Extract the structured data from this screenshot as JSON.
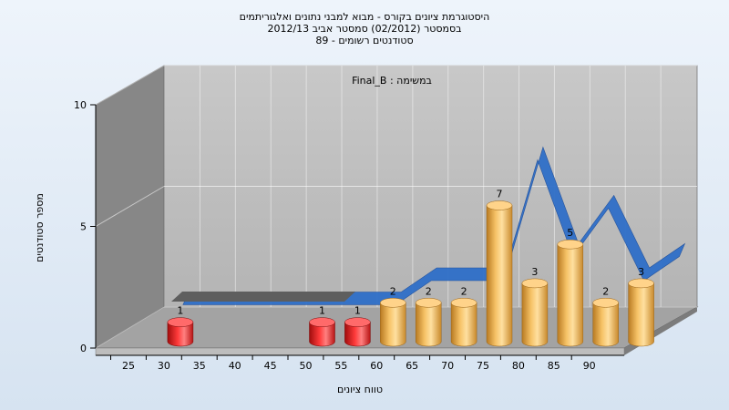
{
  "chart_data": {
    "type": "bar",
    "title": "היסטוגרמת ציונים בקורס - מבוא למבני נתונים ואלגוריתמים",
    "subtitle_1": "בסמסטר  (02/2012)  סמסטר אביב 2012/13",
    "subtitle_2": "סטודנטים רשומים - 89",
    "annotation": "במשימה : Final_B",
    "xlabel": "טווח ציונים",
    "ylabel": "מספר סטודנטים",
    "ylim": [
      0,
      10
    ],
    "y_ticks": [
      "0",
      "5",
      "10"
    ],
    "x_ticks": [
      "25",
      "30",
      "35",
      "40",
      "45",
      "50",
      "55",
      "60",
      "65",
      "70",
      "75",
      "80",
      "85",
      "90"
    ],
    "bars": [
      {
        "x": 25,
        "value": 1,
        "label": "1",
        "color": "red"
      },
      {
        "x": 45,
        "value": 1,
        "label": "1",
        "color": "red"
      },
      {
        "x": 50,
        "value": 1,
        "label": "1",
        "color": "red"
      },
      {
        "x": 55,
        "value": 2,
        "label": "2",
        "color": "orange"
      },
      {
        "x": 60,
        "value": 2,
        "label": "2",
        "color": "orange"
      },
      {
        "x": 65,
        "value": 2,
        "label": "2",
        "color": "orange"
      },
      {
        "x": 70,
        "value": 7,
        "label": "7",
        "color": "orange"
      },
      {
        "x": 75,
        "value": 3,
        "label": "3",
        "color": "orange"
      },
      {
        "x": 80,
        "value": 5,
        "label": "5",
        "color": "orange"
      },
      {
        "x": 85,
        "value": 2,
        "label": "2",
        "color": "orange"
      },
      {
        "x": 90,
        "value": 3,
        "label": "3",
        "color": "orange"
      }
    ],
    "trend": {
      "x": [
        25,
        30,
        35,
        40,
        45,
        50,
        55,
        60,
        65,
        70,
        75,
        80,
        85,
        90,
        95
      ],
      "values": [
        1,
        1,
        1,
        1,
        1,
        1,
        1,
        2,
        2,
        2,
        7,
        3,
        5,
        2,
        3
      ]
    },
    "colors": {
      "red": "#e21d1d",
      "orange": "#f0b050",
      "trend": "#2f6fc8",
      "wall_back": "#bcbcbc",
      "wall_side": "#888888",
      "floor": "#a6a6a6"
    },
    "grid": true
  }
}
